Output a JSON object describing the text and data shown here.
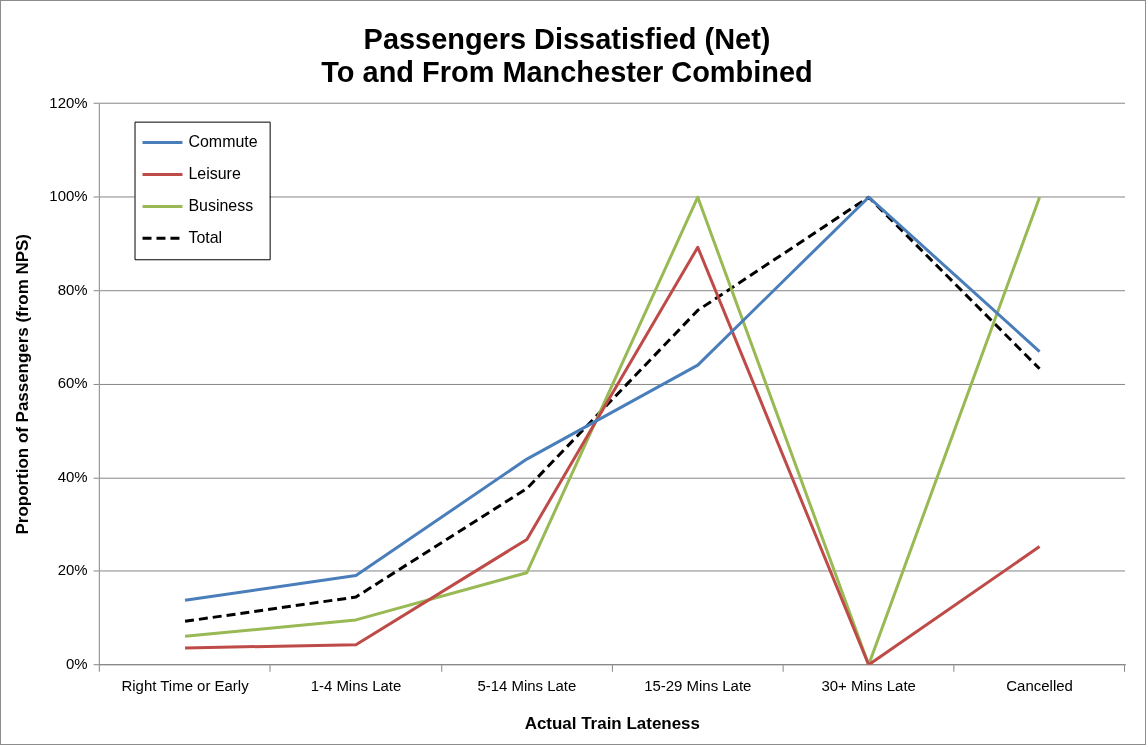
{
  "chart_data": {
    "type": "line",
    "title": "Passengers Dissatisfied (Net)\nTo and From Manchester Combined",
    "xlabel": "Actual Train Lateness",
    "ylabel": "Proportion of Passengers (from NPS)",
    "categories": [
      "Right Time or Early",
      "1-4 Mins Late",
      "5-14 Mins Late",
      "15-29 Mins Late",
      "30+ Mins Late",
      "Cancelled"
    ],
    "series": [
      {
        "name": "Commute",
        "color": "#4a7ebb",
        "values": [
          13.8,
          19.1,
          44.0,
          64.1,
          100,
          67.0
        ]
      },
      {
        "name": "Leisure",
        "color": "#be4b48",
        "values": [
          3.6,
          4.3,
          26.8,
          89.3,
          0,
          25.3
        ]
      },
      {
        "name": "Business",
        "color": "#98b954",
        "values": [
          6.1,
          9.6,
          19.7,
          100,
          0,
          100
        ]
      },
      {
        "name": "Total",
        "color": "#000000",
        "line_style": "dashed",
        "values": [
          9.3,
          14.5,
          37.7,
          75.8,
          100,
          63.3
        ]
      }
    ],
    "ylim": [
      0,
      120
    ],
    "yticks": [
      {
        "value": 0,
        "label": "0%"
      },
      {
        "value": 20,
        "label": "20%"
      },
      {
        "value": 40,
        "label": "40%"
      },
      {
        "value": 60,
        "label": "60%"
      },
      {
        "value": 80,
        "label": "80%"
      },
      {
        "value": 100,
        "label": "100%"
      },
      {
        "value": 120,
        "label": "120%"
      }
    ],
    "grid": "y",
    "legend": "top left",
    "marker": "none",
    "line_style": "solid"
  }
}
